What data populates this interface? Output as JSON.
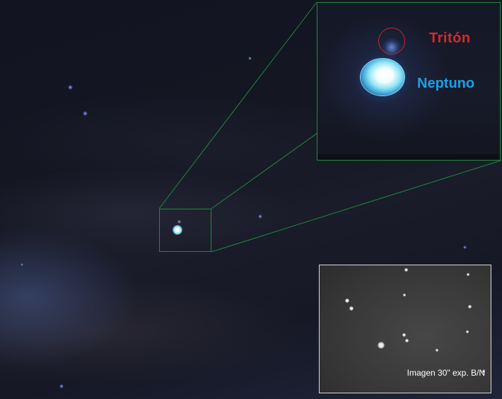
{
  "labels": {
    "triton": "Tritón",
    "neptuno": "Neptuno"
  },
  "bw_inset": {
    "caption": "Imagen 30\" exp. B/N"
  },
  "colors": {
    "zoom_frame": "#1f8a3a",
    "triton_label": "#d32b2b",
    "neptuno_label": "#1aa0e6",
    "triton_marker": "#c8262a"
  }
}
